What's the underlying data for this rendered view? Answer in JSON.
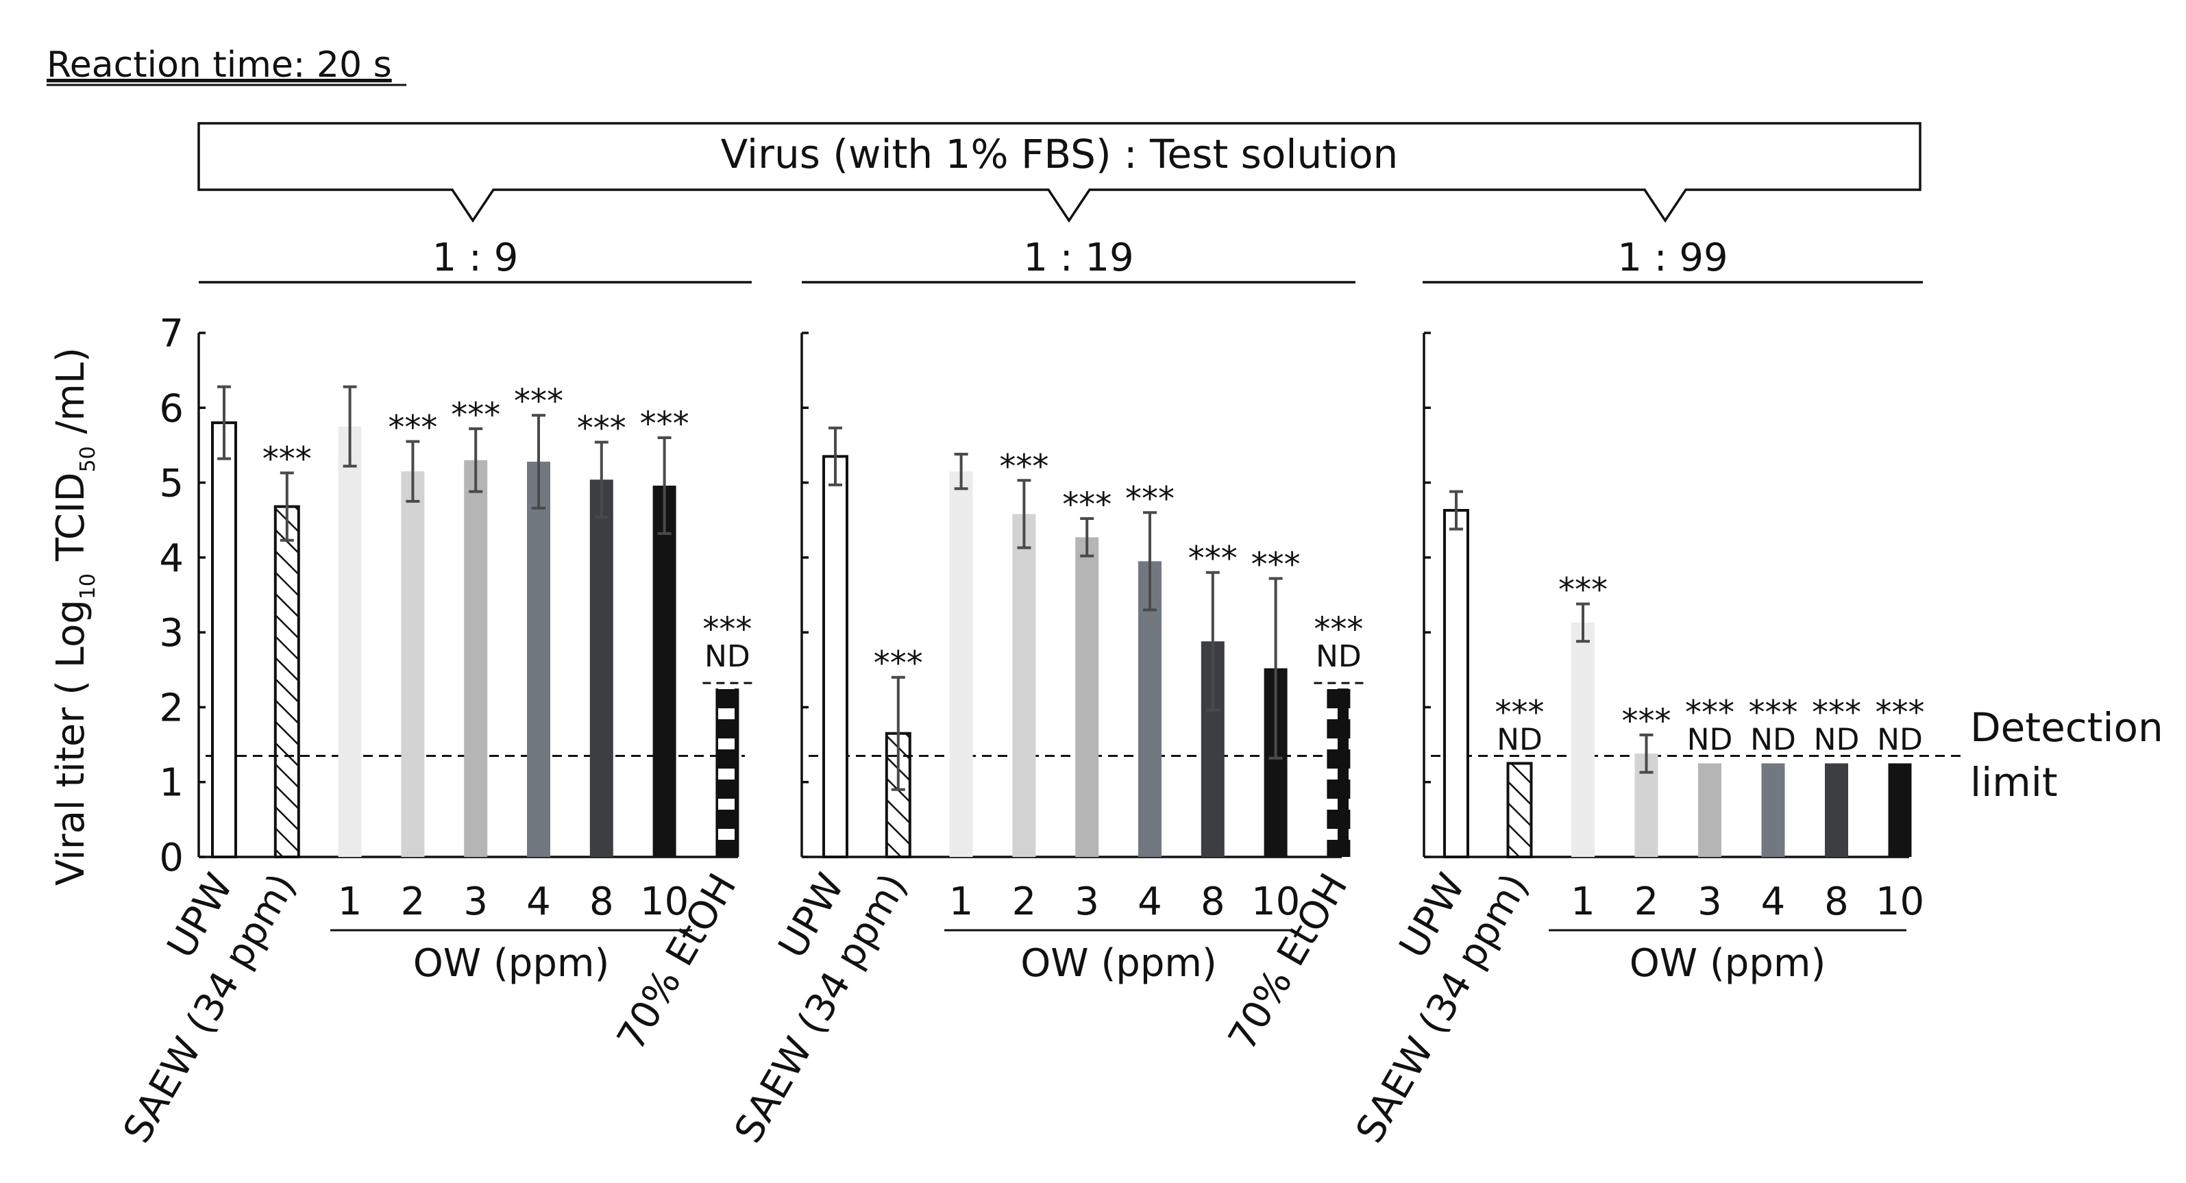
{
  "heading": "Reaction time: 20 s",
  "header_box": "Virus (with 1% FBS) : Test solution",
  "detection_limit_label": [
    "Detection",
    "limit"
  ],
  "ylabel": {
    "prefix": "Viral titer ( Log",
    "sub1": "10",
    "mid": " TCID",
    "sub2": "50",
    "suffix": " /mL)"
  },
  "colors": {
    "UPW": "#ffffff",
    "SAEW": "hatch",
    "OW1": "#ececec",
    "OW2": "#d3d3d3",
    "OW3": "#b5b5b5",
    "OW4": "#727880",
    "OW8": "#3c3e42",
    "OW10": "#131313",
    "EtOH": "stripes",
    "error_bar": "#4a4a4a"
  },
  "chart_data": [
    {
      "type": "bar",
      "title": "1 : 9",
      "ylabel": "Viral titer ( Log10 TCID50 /mL)",
      "ylim": [
        0,
        7
      ],
      "yticks": [
        "0",
        "1",
        "2",
        "3",
        "4",
        "5",
        "6",
        "7"
      ],
      "detection_limit": 1.35,
      "group_label": "OW (ppm)",
      "categories": [
        "UPW",
        "SAEW (34 ppm)",
        "1",
        "2",
        "3",
        "4",
        "8",
        "10",
        "70% EtOH"
      ],
      "values": [
        5.8,
        4.68,
        5.75,
        5.15,
        5.3,
        5.28,
        5.04,
        4.96,
        2.25
      ],
      "errors": [
        0.48,
        0.45,
        0.53,
        0.4,
        0.42,
        0.62,
        0.5,
        0.64,
        0
      ],
      "annotations": [
        "",
        "***",
        "",
        "***",
        "***",
        "***",
        "***",
        "***",
        "***"
      ],
      "nd": [
        "",
        "",
        "",
        "",
        "",
        "",
        "",
        "",
        "ND"
      ]
    },
    {
      "type": "bar",
      "title": "1 : 19",
      "ylim": [
        0,
        7
      ],
      "detection_limit": 1.35,
      "group_label": "OW (ppm)",
      "categories": [
        "UPW",
        "SAEW (34 ppm)",
        "1",
        "2",
        "3",
        "4",
        "8",
        "10",
        "70% EtOH"
      ],
      "values": [
        5.35,
        1.65,
        5.15,
        4.58,
        4.27,
        3.95,
        2.88,
        2.52,
        2.25
      ],
      "errors": [
        0.38,
        0.75,
        0.23,
        0.45,
        0.25,
        0.65,
        0.92,
        1.2,
        0
      ],
      "annotations": [
        "",
        "***",
        "",
        "***",
        "***",
        "***",
        "***",
        "***",
        "***"
      ],
      "nd": [
        "",
        "",
        "",
        "",
        "",
        "",
        "",
        "",
        "ND"
      ]
    },
    {
      "type": "bar",
      "title": "1 : 99",
      "ylim": [
        0,
        7
      ],
      "detection_limit": 1.35,
      "group_label": "OW (ppm)",
      "categories": [
        "UPW",
        "SAEW (34 ppm)",
        "1",
        "2",
        "3",
        "4",
        "8",
        "10"
      ],
      "values": [
        4.63,
        1.25,
        3.13,
        1.38,
        1.25,
        1.25,
        1.25,
        1.25
      ],
      "errors": [
        0.25,
        0,
        0.25,
        0.25,
        0,
        0,
        0,
        0
      ],
      "annotations": [
        "",
        "***",
        "***",
        "***",
        "***",
        "***",
        "***",
        "***"
      ],
      "nd": [
        "",
        "ND",
        "",
        "",
        "ND",
        "ND",
        "ND",
        "ND"
      ]
    }
  ]
}
